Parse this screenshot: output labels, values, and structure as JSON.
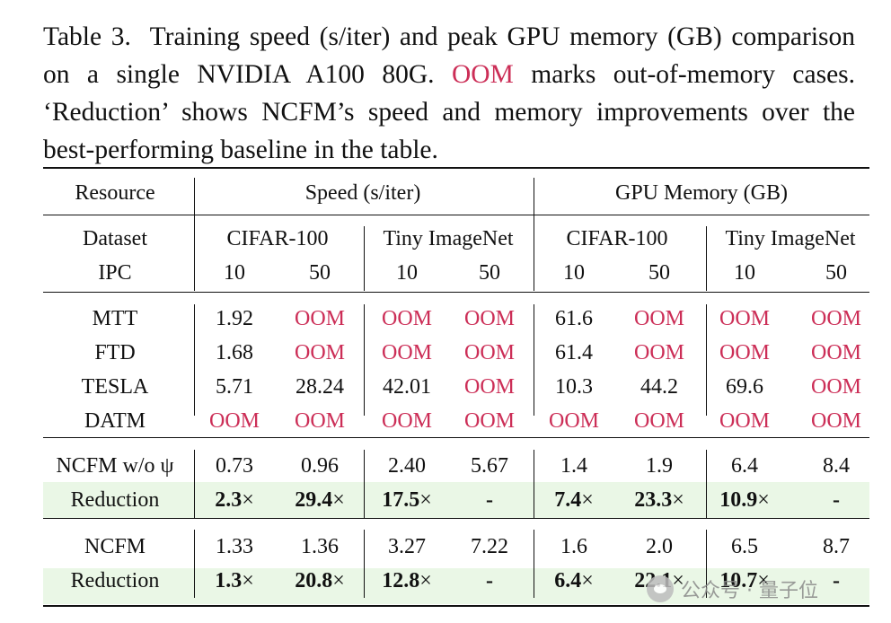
{
  "caption": {
    "label": "Table 3.",
    "text_a": "Training speed (s/iter) and peak GPU memory (GB) comparison on a single NVIDIA A100 80G.",
    "oom": "OOM",
    "text_b": "marks out-of-memory cases. ‘Reduction’ shows NCFM’s speed and memory improvements over the best-performing baseline in the table."
  },
  "colors": {
    "oom_red": "#cc2e57",
    "highlight_green": "#eaf7e6"
  },
  "header": {
    "resource": "Resource",
    "speed": "Speed (s/iter)",
    "memory": "GPU Memory (GB)",
    "dataset": "Dataset",
    "ipc": "IPC",
    "datasets": [
      "CIFAR-100",
      "Tiny ImageNet",
      "CIFAR-100",
      "Tiny ImageNet"
    ],
    "ipcs": [
      "10",
      "50",
      "10",
      "50",
      "10",
      "50",
      "10",
      "50"
    ]
  },
  "rows": [
    {
      "method": "MTT",
      "values": [
        "1.92",
        "OOM",
        "OOM",
        "OOM",
        "61.6",
        "OOM",
        "OOM",
        "OOM"
      ]
    },
    {
      "method": "FTD",
      "values": [
        "1.68",
        "OOM",
        "OOM",
        "OOM",
        "61.4",
        "OOM",
        "OOM",
        "OOM"
      ]
    },
    {
      "method": "TESLA",
      "values": [
        "5.71",
        "28.24",
        "42.01",
        "OOM",
        "10.3",
        "44.2",
        "69.6",
        "OOM"
      ]
    },
    {
      "method": "DATM",
      "values": [
        "OOM",
        "OOM",
        "OOM",
        "OOM",
        "OOM",
        "OOM",
        "OOM",
        "OOM"
      ]
    },
    {
      "method": "NCFM w/o ψ",
      "values": [
        "0.73",
        "0.96",
        "2.40",
        "5.67",
        "1.4",
        "1.9",
        "6.4",
        "8.4"
      ]
    },
    {
      "method": "Reduction",
      "values": [
        "2.3",
        "29.4",
        "17.5",
        "-",
        "7.4",
        "23.3",
        "10.9",
        "-"
      ]
    },
    {
      "method": "NCFM",
      "values": [
        "1.33",
        "1.36",
        "3.27",
        "7.22",
        "1.6",
        "2.0",
        "6.5",
        "8.7"
      ]
    },
    {
      "method": "Reduction",
      "values": [
        "1.3",
        "20.8",
        "12.8",
        "-",
        "6.4",
        "22.1",
        "10.7",
        "-"
      ]
    }
  ],
  "times_symbol": "×",
  "watermark": {
    "text": "公众号 · 量子位",
    "icon": "wechat-logo-icon"
  }
}
